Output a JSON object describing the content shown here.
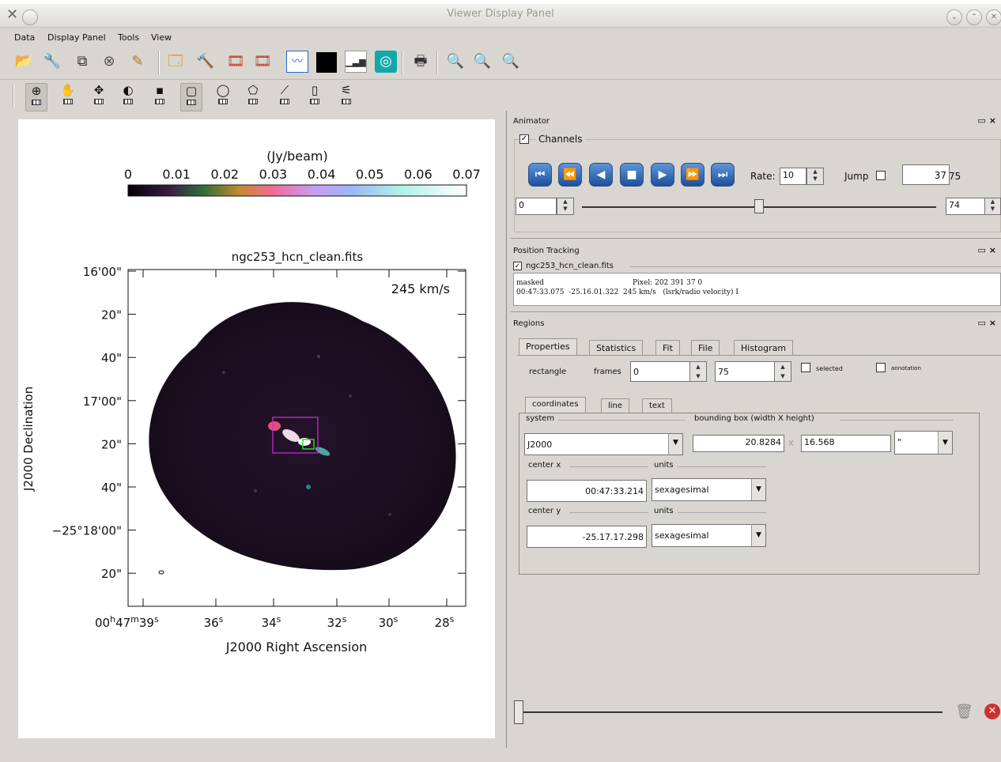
{
  "window": {
    "title": "Viewer Display Panel",
    "app_icon": "x-logo-icon",
    "controls": [
      "minimize",
      "maximize",
      "close"
    ]
  },
  "menu": [
    {
      "label": "Data",
      "mnemonic": "D"
    },
    {
      "label": "Display Panel",
      "mnemonic": "i"
    },
    {
      "label": "Tools",
      "mnemonic": "T"
    },
    {
      "label": "View",
      "mnemonic": "V"
    }
  ],
  "toolbar_main": [
    "open-folder-icon",
    "wrench-icon",
    "copy-panel-icon",
    "close-panel-icon",
    "pen-icon",
    "panel-settings-icon",
    "tools-icon",
    "movie-p-icon",
    "movie-icon",
    "movie-2-icon",
    "profile-icon",
    "black-square-icon",
    "histogram-icon",
    "target-icon",
    "print-icon",
    "zoom-in-icon",
    "zoom-out-icon",
    "zoom-fit-icon"
  ],
  "toolbar_mouse": [
    "zoom-tool-icon",
    "pan-tool-icon",
    "move-tool-icon",
    "contrast-tool-icon",
    "point-tool-icon",
    "rect-region-icon",
    "ellipse-region-icon",
    "poly-region-icon",
    "polyline-icon",
    "position-icon",
    "measure-icon"
  ],
  "image": {
    "colorbar_label": "(Jy/beam)",
    "colorbar_ticks": [
      "0",
      "0.01",
      "0.02",
      "0.03",
      "0.04",
      "0.05",
      "0.06",
      "0.07"
    ],
    "title": "ngc253_hcn_clean.fits",
    "velocity_label": "245 km/s",
    "y_ticks": [
      "16'00\"",
      "20\"",
      "40\"",
      "17'00\"",
      "20\"",
      "40\"",
      "−25°18'00\"",
      "20\""
    ],
    "x_tick_main": [
      "00",
      "h",
      "47",
      "m",
      "39",
      "s"
    ],
    "x_ticks": [
      [
        "36",
        "s"
      ],
      [
        "34",
        "s"
      ],
      [
        "32",
        "s"
      ],
      [
        "30",
        "s"
      ],
      [
        "28",
        "s"
      ]
    ],
    "y_axis_label": "J2000 Declination",
    "x_axis_label": "J2000 Right Ascension",
    "colors": {
      "background_field": "#140b18",
      "region_box": "#d22ed8",
      "region_inner": "#2bd82b"
    }
  },
  "animator": {
    "panel_title": "Animator",
    "channels_label": "Channels",
    "channels_checked": true,
    "buttons": [
      "to-start-icon",
      "rewind-icon",
      "step-back-icon",
      "stop-icon",
      "play-icon",
      "step-forward-icon",
      "to-end-icon"
    ],
    "rate_label": "Rate:",
    "rate_value": "10",
    "jump_label": "Jump",
    "jump_checked": false,
    "frame_current": "37",
    "frame_total": "75",
    "slider_min": "0",
    "slider_max": "74",
    "slider_fraction": 0.5
  },
  "position_tracking": {
    "panel_title": "Position Tracking",
    "file": "ngc253_hcn_clean.fits",
    "file_checked": true,
    "line1_a": "masked",
    "line1_b": "Pixel: 202 391 37 0",
    "line2": "00:47:33.075  -25.16.01.322  245 km/s   (lsrk/radio velocity) I"
  },
  "regions": {
    "panel_title": "Regions",
    "tabs": [
      "Properties",
      "Statistics",
      "Fit",
      "File",
      "Histogram"
    ],
    "shape": "rectangle",
    "frames_label": "frames",
    "frame_from": "0",
    "frame_to": "75",
    "selected_label": "selected",
    "annotation_label": "annotation",
    "subtabs": [
      "coordinates",
      "line",
      "text"
    ],
    "system_label": "system",
    "system_value": "J2000",
    "bbox_label": "bounding box (width X height)",
    "bbox_width": "20.8284",
    "bbox_x": "X",
    "bbox_height": "16.568",
    "bbox_unit": "\"",
    "center_x_label": "center x",
    "center_x_value": "00:47:33.214",
    "center_x_units_label": "units",
    "center_x_units": "sexagesimal",
    "center_y_label": "center y",
    "center_y_value": "-25.17.17.298",
    "center_y_units_label": "units",
    "center_y_units": "sexagesimal",
    "bottom_slider_fraction": 0.0,
    "trash_icon": "trash-icon",
    "delete_icon": "delete-icon"
  }
}
